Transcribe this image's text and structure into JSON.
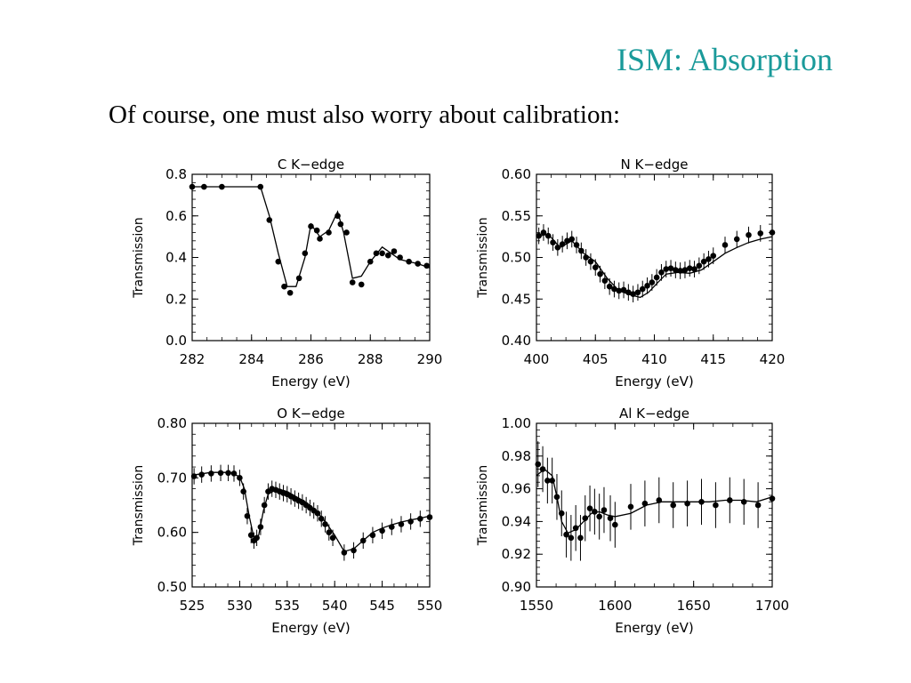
{
  "slide": {
    "title": "ISM: Absorption",
    "subtitle": "Of course, one must also worry about calibration:"
  },
  "chart_data": [
    {
      "type": "line",
      "title": "C K−edge",
      "xlabel": "Energy (eV)",
      "ylabel": "Transmission",
      "xlim": [
        282,
        290
      ],
      "ylim": [
        0.0,
        0.8
      ],
      "xticks": [
        282,
        284,
        286,
        288,
        290
      ],
      "yticks": [
        0.0,
        0.2,
        0.4,
        0.6,
        0.8
      ],
      "ytick_labels": [
        "0.0",
        "0.2",
        "0.4",
        "0.6",
        "0.8"
      ],
      "model": {
        "x": [
          282.0,
          284.3,
          284.6,
          284.9,
          285.2,
          285.5,
          285.8,
          286.0,
          286.3,
          286.6,
          286.9,
          287.1,
          287.4,
          287.7,
          288.0,
          288.4,
          288.7,
          289.0,
          289.3,
          289.6,
          290.0
        ],
        "y": [
          0.74,
          0.74,
          0.6,
          0.42,
          0.26,
          0.26,
          0.4,
          0.56,
          0.5,
          0.53,
          0.62,
          0.52,
          0.3,
          0.31,
          0.38,
          0.45,
          0.42,
          0.39,
          0.38,
          0.37,
          0.35
        ]
      },
      "data": {
        "x": [
          282.0,
          282.4,
          283.0,
          284.3,
          284.6,
          284.9,
          285.1,
          285.3,
          285.6,
          285.8,
          286.0,
          286.2,
          286.3,
          286.6,
          286.9,
          287.0,
          287.2,
          287.4,
          287.7,
          288.0,
          288.2,
          288.4,
          288.6,
          288.8,
          289.0,
          289.3,
          289.6,
          289.9
        ],
        "y": [
          0.74,
          0.74,
          0.74,
          0.74,
          0.58,
          0.38,
          0.26,
          0.23,
          0.3,
          0.42,
          0.55,
          0.53,
          0.49,
          0.52,
          0.6,
          0.56,
          0.52,
          0.28,
          0.27,
          0.38,
          0.42,
          0.42,
          0.41,
          0.43,
          0.4,
          0.38,
          0.37,
          0.36
        ]
      },
      "errors": false
    },
    {
      "type": "line",
      "title": "N K−edge",
      "xlabel": "Energy (eV)",
      "ylabel": "Transmission",
      "xlim": [
        400,
        420
      ],
      "ylim": [
        0.4,
        0.6
      ],
      "xticks": [
        400,
        405,
        410,
        415,
        420
      ],
      "yticks": [
        0.4,
        0.45,
        0.5,
        0.55,
        0.6
      ],
      "ytick_labels": [
        "0.40",
        "0.45",
        "0.50",
        "0.55",
        "0.60"
      ],
      "model": {
        "x": [
          400.0,
          401.0,
          402.0,
          403.0,
          404.0,
          405.0,
          406.0,
          407.0,
          408.0,
          408.8,
          409.5,
          410.3,
          411.0,
          412.0,
          413.0,
          414.0,
          415.0,
          416.0,
          417.0,
          418.0,
          419.0,
          420.0
        ],
        "y": [
          0.525,
          0.528,
          0.512,
          0.52,
          0.505,
          0.495,
          0.475,
          0.46,
          0.455,
          0.452,
          0.458,
          0.47,
          0.48,
          0.482,
          0.481,
          0.485,
          0.495,
          0.505,
          0.512,
          0.518,
          0.522,
          0.525
        ]
      },
      "data": {
        "x": [
          400.2,
          400.6,
          401.0,
          401.4,
          401.8,
          402.2,
          402.6,
          403.0,
          403.4,
          403.8,
          404.2,
          404.6,
          405.0,
          405.4,
          405.8,
          406.2,
          406.6,
          407.0,
          407.4,
          407.8,
          408.2,
          408.6,
          409.0,
          409.4,
          409.8,
          410.2,
          410.6,
          411.0,
          411.4,
          411.8,
          412.2,
          412.6,
          413.0,
          413.4,
          413.8,
          414.2,
          414.6,
          415.0,
          416.0,
          417.0,
          418.0,
          419.0,
          420.0
        ],
        "y": [
          0.526,
          0.53,
          0.526,
          0.518,
          0.512,
          0.516,
          0.52,
          0.522,
          0.515,
          0.508,
          0.5,
          0.495,
          0.488,
          0.48,
          0.472,
          0.465,
          0.462,
          0.46,
          0.461,
          0.458,
          0.456,
          0.458,
          0.462,
          0.466,
          0.47,
          0.476,
          0.482,
          0.486,
          0.487,
          0.485,
          0.484,
          0.485,
          0.487,
          0.486,
          0.49,
          0.495,
          0.498,
          0.502,
          0.515,
          0.522,
          0.527,
          0.529,
          0.53
        ]
      },
      "errors": true
    },
    {
      "type": "line",
      "title": "O K−edge",
      "xlabel": "Energy (eV)",
      "ylabel": "Transmission",
      "xlim": [
        525,
        550
      ],
      "ylim": [
        0.5,
        0.8
      ],
      "xticks": [
        525,
        530,
        535,
        540,
        545,
        550
      ],
      "yticks": [
        0.5,
        0.6,
        0.7,
        0.8
      ],
      "ytick_labels": [
        "0.50",
        "0.60",
        "0.70",
        "0.80"
      ],
      "model": {
        "x": [
          525.0,
          527.0,
          529.0,
          530.0,
          530.5,
          531.0,
          531.5,
          532.0,
          532.5,
          533.0,
          534.0,
          535.0,
          536.0,
          537.0,
          538.0,
          539.0,
          540.0,
          541.0,
          542.0,
          543.0,
          544.0,
          545.0,
          546.0,
          547.0,
          548.0,
          549.0,
          550.0
        ],
        "y": [
          0.705,
          0.71,
          0.71,
          0.702,
          0.68,
          0.63,
          0.59,
          0.595,
          0.64,
          0.67,
          0.68,
          0.675,
          0.665,
          0.655,
          0.64,
          0.62,
          0.595,
          0.565,
          0.57,
          0.585,
          0.6,
          0.608,
          0.614,
          0.619,
          0.623,
          0.626,
          0.63
        ]
      },
      "data": {
        "x": [
          525.2,
          526.0,
          527.0,
          528.0,
          528.8,
          529.4,
          530.0,
          530.4,
          530.8,
          531.2,
          531.5,
          531.8,
          532.2,
          532.6,
          533.0,
          533.4,
          533.8,
          534.2,
          534.6,
          535.0,
          535.4,
          535.8,
          536.2,
          536.6,
          537.0,
          537.4,
          537.8,
          538.2,
          538.6,
          539.0,
          539.4,
          539.8,
          541.0,
          542.0,
          543.0,
          544.0,
          545.0,
          546.0,
          547.0,
          548.0,
          549.0,
          550.0
        ],
        "y": [
          0.703,
          0.706,
          0.708,
          0.709,
          0.709,
          0.708,
          0.7,
          0.675,
          0.63,
          0.595,
          0.585,
          0.59,
          0.61,
          0.65,
          0.675,
          0.68,
          0.678,
          0.675,
          0.672,
          0.67,
          0.666,
          0.662,
          0.658,
          0.655,
          0.65,
          0.645,
          0.64,
          0.635,
          0.625,
          0.615,
          0.6,
          0.59,
          0.563,
          0.567,
          0.585,
          0.595,
          0.603,
          0.61,
          0.615,
          0.62,
          0.625,
          0.628
        ]
      },
      "errors": true
    },
    {
      "type": "line",
      "title": "Al K−edge",
      "xlabel": "Energy (eV)",
      "ylabel": "Transmission",
      "xlim": [
        1550,
        1700
      ],
      "ylim": [
        0.9,
        1.0
      ],
      "xticks": [
        1550,
        1600,
        1650,
        1700
      ],
      "yticks": [
        0.9,
        0.92,
        0.94,
        0.96,
        0.98,
        1.0
      ],
      "ytick_labels": [
        "0.90",
        "0.92",
        "0.94",
        "0.96",
        "0.98",
        "1.00"
      ],
      "model": {
        "x": [
          1550,
          1555,
          1560,
          1563,
          1566,
          1570,
          1575,
          1580,
          1585,
          1590,
          1595,
          1600,
          1610,
          1620,
          1630,
          1640,
          1650,
          1660,
          1670,
          1680,
          1690,
          1700
        ],
        "y": [
          0.968,
          0.972,
          0.968,
          0.955,
          0.94,
          0.933,
          0.935,
          0.94,
          0.945,
          0.946,
          0.944,
          0.943,
          0.945,
          0.95,
          0.952,
          0.952,
          0.952,
          0.952,
          0.953,
          0.953,
          0.952,
          0.955
        ]
      },
      "data": {
        "x": [
          1551,
          1554,
          1557,
          1560,
          1563,
          1566,
          1569,
          1572,
          1575,
          1578,
          1581,
          1584,
          1587,
          1590,
          1593,
          1597,
          1600,
          1610,
          1619,
          1628,
          1637,
          1646,
          1655,
          1664,
          1673,
          1682,
          1691,
          1700
        ],
        "y": [
          0.975,
          0.972,
          0.965,
          0.965,
          0.955,
          0.945,
          0.932,
          0.93,
          0.936,
          0.93,
          0.942,
          0.948,
          0.946,
          0.943,
          0.947,
          0.942,
          0.938,
          0.949,
          0.951,
          0.953,
          0.95,
          0.951,
          0.952,
          0.95,
          0.953,
          0.952,
          0.95,
          0.954
        ]
      },
      "errors": true
    }
  ]
}
